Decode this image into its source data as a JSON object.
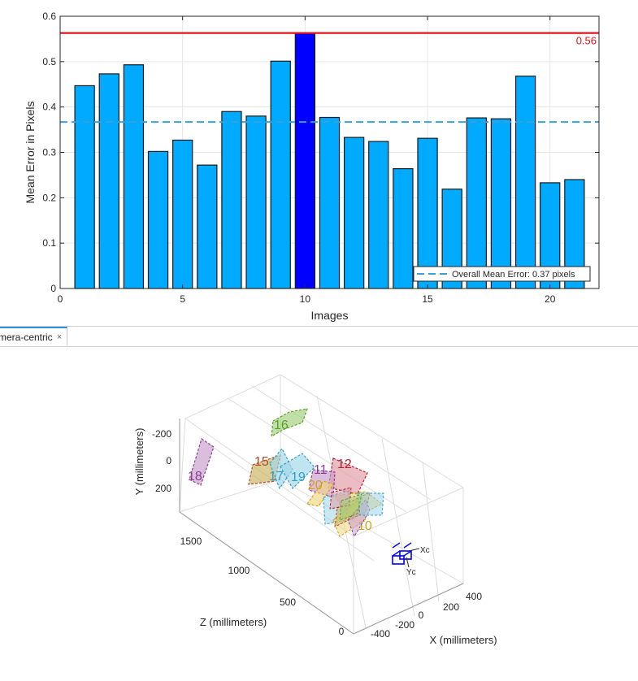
{
  "chart_data": [
    {
      "type": "bar",
      "categories": [
        1,
        2,
        3,
        4,
        5,
        6,
        7,
        8,
        9,
        10,
        11,
        12,
        13,
        14,
        15,
        16,
        17,
        18,
        19,
        20,
        21
      ],
      "values": [
        0.447,
        0.473,
        0.493,
        0.302,
        0.327,
        0.272,
        0.39,
        0.38,
        0.501,
        0.563,
        0.377,
        0.333,
        0.324,
        0.264,
        0.331,
        0.219,
        0.376,
        0.374,
        0.468,
        0.233,
        0.24
      ],
      "highlight_index": 9,
      "title": "",
      "xlabel": "Images",
      "ylabel": "Mean Error in Pixels",
      "xlim": [
        0,
        22
      ],
      "ylim": [
        0,
        0.6
      ],
      "xticks": [
        0,
        5,
        10,
        15,
        20
      ],
      "yticks": [
        0,
        0.1,
        0.2,
        0.3,
        0.4,
        0.5,
        0.6
      ],
      "ytick_labels": [
        "0",
        "0.1",
        "0.2",
        "0.3",
        "0.4",
        "0.5",
        "0.6"
      ],
      "max_line": {
        "value": 0.563,
        "label": "0.56",
        "color": "#e0141c"
      },
      "mean_line": {
        "value": 0.367,
        "color": "#3aa0d8"
      },
      "legend": {
        "entries": [
          "Overall Mean Error: 0.37 pixels"
        ],
        "placement": "bottom-right"
      },
      "bar_color": "#00aaff",
      "highlight_color": "#0000ff",
      "grid": true
    },
    {
      "type": "scatter",
      "title": "",
      "xlabel": "X (millimeters)",
      "ylabel": "Y (millimeters)",
      "zlabel": "Z (millimeters)",
      "xticks": [
        "-400",
        "-200",
        "0",
        "200",
        "400"
      ],
      "yticks": [
        "-200",
        "0",
        "200"
      ],
      "zticks": [
        "0",
        "500",
        "1000",
        "1500"
      ],
      "camera_axis_labels": [
        "Xᴄ",
        "Yᴄ"
      ],
      "boards": [
        {
          "label": "16",
          "color": "#5a9e2a",
          "fill": "#9fd07a"
        },
        {
          "label": "18",
          "color": "#8a3d8f",
          "fill": "#c79acb"
        },
        {
          "label": "15",
          "color": "#b04a28",
          "fill": "#c8b25a"
        },
        {
          "label": "17",
          "color": "#2ea0c8",
          "fill": "#9fd6ea"
        },
        {
          "label": "19",
          "color": "#2ea0c8",
          "fill": "#9fd6ea"
        },
        {
          "label": "12",
          "color": "#b02030",
          "fill": "#e09aa2"
        },
        {
          "label": "11",
          "color": "#8a3d8f",
          "fill": "#c79acb"
        },
        {
          "label": "20",
          "color": "#d4a017",
          "fill": "#f0d680"
        },
        {
          "label": "10",
          "color": "#d4a017",
          "fill": "#f0d680"
        }
      ]
    }
  ],
  "tab": {
    "label": "mera-centric",
    "close": "×"
  }
}
